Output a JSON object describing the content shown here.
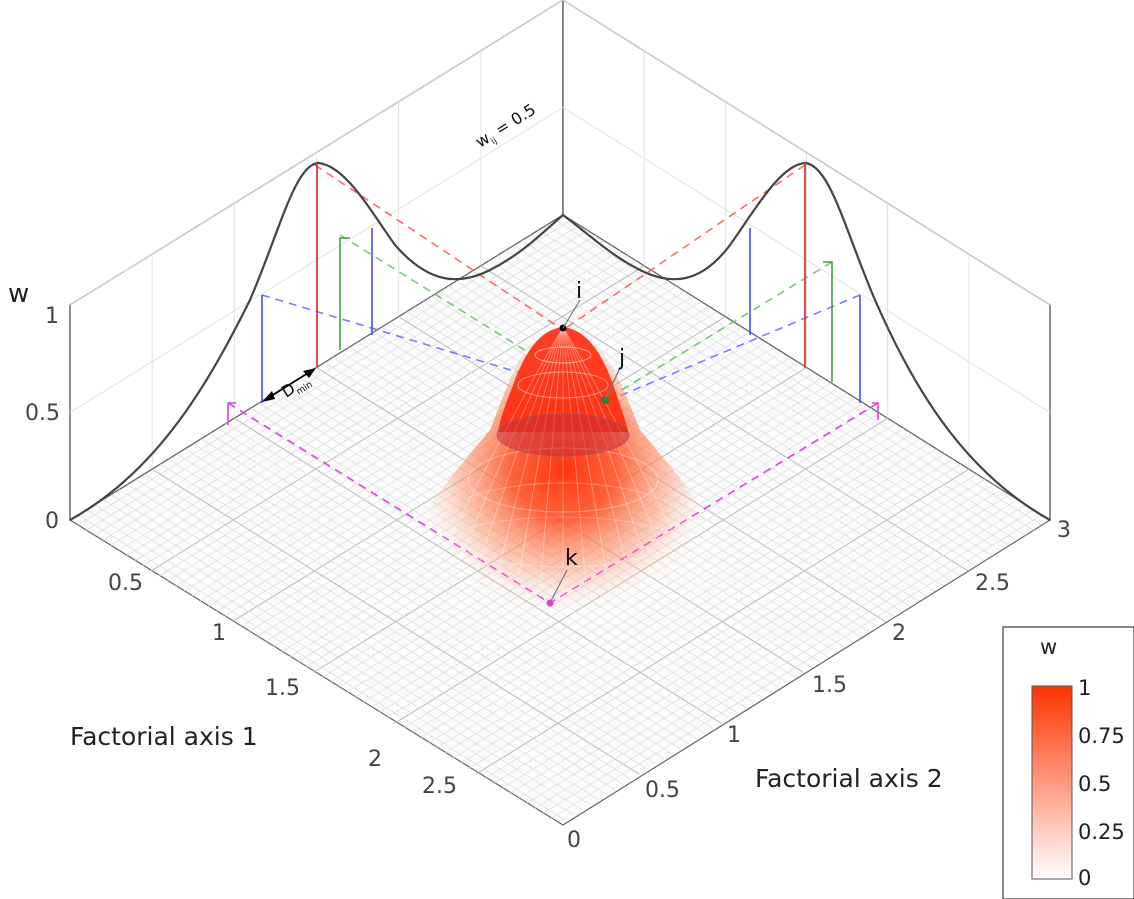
{
  "chart_data": {
    "type": "surface",
    "xlabel": "Factorial axis 1",
    "ylabel": "Factorial axis 2",
    "zlabel": "w",
    "xlim": [
      0,
      3
    ],
    "ylim": [
      0,
      3
    ],
    "zlim": [
      0,
      1
    ],
    "x_ticks": [
      "0.5",
      "1",
      "1.5",
      "2",
      "2.5"
    ],
    "y_ticks": [
      "0",
      "0.5",
      "1",
      "1.5",
      "2",
      "2.5",
      "3"
    ],
    "z_ticks": [
      "0",
      "0.5",
      "1"
    ],
    "grid": true,
    "surface": {
      "function": "gaussian",
      "peak": 1,
      "center": [
        1.5,
        1.5
      ]
    },
    "points": [
      {
        "label": "i",
        "x": 1.5,
        "y": 1.5,
        "w": 1.0,
        "color": "#000000"
      },
      {
        "label": "j",
        "x": 1.5,
        "y": 1.85,
        "w": 0.55,
        "color": "#2e7d32"
      },
      {
        "label": "k",
        "x": 2.45,
        "y": 1.5,
        "w": 0.0,
        "color": "#ff33cc"
      }
    ],
    "annotations": {
      "threshold_text": "w",
      "threshold_sub": "ij",
      "threshold_value": " = 0.5",
      "dmin_text": "D",
      "dmin_sub": "min"
    },
    "colorbar": {
      "label": "w",
      "ticks": [
        "1",
        "0.75",
        "0.5",
        "0.25",
        "0"
      ],
      "range": [
        0,
        1
      ],
      "color_low": "#ffffff",
      "color_high": "#ff3300"
    }
  }
}
